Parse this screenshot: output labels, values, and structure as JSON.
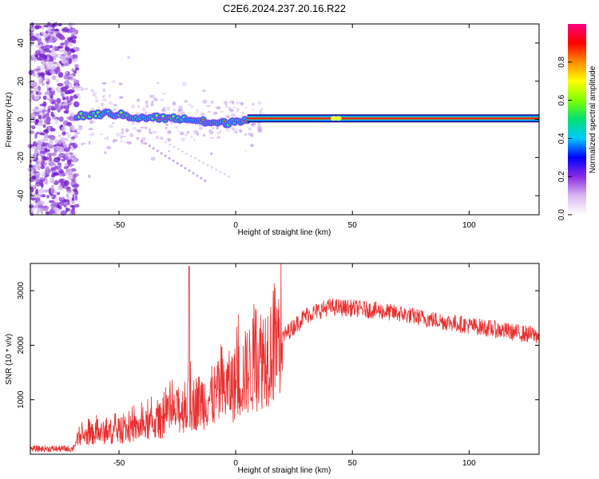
{
  "title": "C2E6.2024.237.20.16.R22",
  "chart_data": [
    {
      "type": "heatmap",
      "name": "spectrogram",
      "xlabel": "Height of straight line (km)",
      "ylabel": "Frequency (Hz)",
      "xlim": [
        -88,
        130
      ],
      "ylim": [
        -50,
        50
      ],
      "xticks": [
        -50,
        0,
        50,
        100
      ],
      "yticks": [
        -40,
        -20,
        0,
        20,
        40
      ],
      "tick_labels_x": [
        "-50",
        "0",
        "50",
        "100"
      ],
      "tick_labels_y": [
        "-40",
        "-20",
        "0",
        "20",
        "40"
      ],
      "colorbar": {
        "label": "Normalized spectral amplitude",
        "range": [
          0.0,
          1.0
        ],
        "ticks": [
          0.0,
          0.2,
          0.4,
          0.6,
          0.8
        ],
        "tick_labels": [
          "0.0",
          "0.2",
          "0.4",
          "0.6",
          "0.8"
        ],
        "colormap": [
          "#ffffff",
          "#d8b8f0",
          "#8a2be2",
          "#0000ff",
          "#00c8ff",
          "#00e070",
          "#7fff00",
          "#ffff00",
          "#ff8c00",
          "#ff0000",
          "#ff0080"
        ]
      },
      "ridge": {
        "frequency_hz": 0.5,
        "peak_wander": [
          [
            -68,
            1.5
          ],
          [
            -60,
            2.5
          ],
          [
            -55,
            3
          ],
          [
            -50,
            2.5
          ],
          [
            -45,
            1.5
          ],
          [
            -40,
            0.5
          ],
          [
            -35,
            1
          ],
          [
            -30,
            0.5
          ],
          [
            -25,
            0.5
          ],
          [
            -20,
            0
          ],
          [
            -15,
            -1
          ],
          [
            -10,
            -2
          ],
          [
            -5,
            -2
          ],
          [
            0,
            -1
          ],
          [
            5,
            0.5
          ]
        ],
        "steady_from_km": 5,
        "steady_to_km": 130
      },
      "noise_region_km": [
        -88,
        -68
      ]
    },
    {
      "type": "line",
      "name": "snr",
      "color": "#e83030",
      "xlabel": "Height of straight line (km)",
      "ylabel": "SNR (10 * v/v)",
      "xlim": [
        -88,
        130
      ],
      "ylim": [
        0,
        3500
      ],
      "xticks": [
        -50,
        0,
        50,
        100
      ],
      "yticks": [
        1000,
        2000,
        3000
      ],
      "tick_labels_x": [
        "-50",
        "0",
        "50",
        "100"
      ],
      "tick_labels_y": [
        "1000",
        "2000",
        "3000"
      ],
      "envelope_x": [
        -88,
        -70,
        -67,
        -60,
        -50,
        -40,
        -30,
        -20,
        -10,
        0,
        10,
        20,
        30,
        40,
        50,
        60,
        70,
        80,
        90,
        100,
        110,
        120,
        130
      ],
      "envelope_y": [
        100,
        100,
        320,
        380,
        420,
        500,
        650,
        900,
        1050,
        1300,
        1750,
        2150,
        2550,
        2700,
        2680,
        2640,
        2580,
        2500,
        2430,
        2360,
        2300,
        2230,
        2180
      ],
      "spike": {
        "x": -20,
        "y": 3450
      }
    }
  ]
}
